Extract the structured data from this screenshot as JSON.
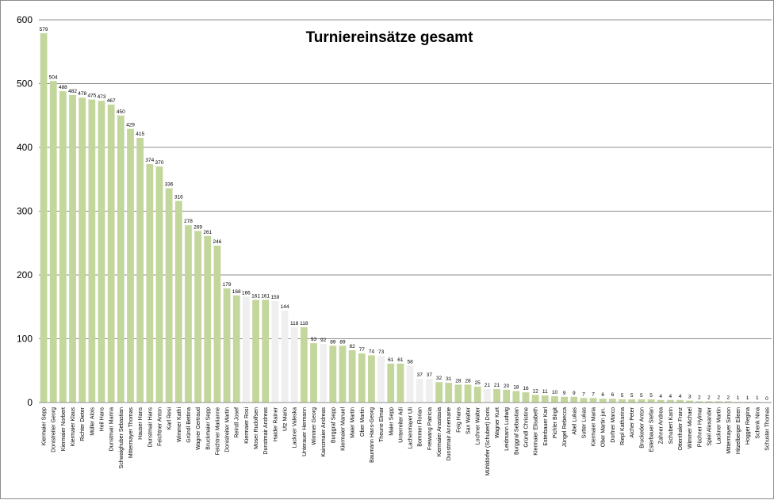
{
  "chart_data": {
    "type": "bar",
    "title": "Turniereinsätze gesamt",
    "xlabel": "",
    "ylabel": "",
    "ylim": [
      0,
      600
    ],
    "yticks": [
      0,
      100,
      200,
      300,
      400,
      500,
      600
    ],
    "grid": true,
    "legend": "none",
    "colors": {
      "green": "#c3d69b",
      "gray": "#efefef",
      "grid": "#8c8c8c"
    },
    "categories": [
      "Kiermaier Sepp",
      "Donislreiter Georg",
      "Kiermaier Norbert",
      "Kiermaier Klaus",
      "Richter Dieter",
      "Müller Alois",
      "Heil Hans",
      "Dunstmair Marina",
      "Schwaighuber Sebastian",
      "Mittermayer Thomas",
      "Hauser Hans",
      "Dunstmair Hans",
      "Feichtner Anton",
      "Karl Resi",
      "Wimmer Kathi",
      "Gründl Bettina",
      "Wagner Gertraud",
      "Bruckmaier Sepp",
      "Feichtner Marianne",
      "Donislreiter Martin",
      "Reindl Josef",
      "Kiermaier Rosi",
      "Moser Rudolfsen",
      "Dunstmair Andreas",
      "Haider Rainer",
      "Utz Mario",
      "Lackner Valeska",
      "Unterauer Hermann",
      "Wimmer Georg",
      "Kainzmaier Andreas",
      "Burggraf Sepp",
      "Kiermaier Manuel",
      "Maier Martin",
      "Ober Martin",
      "Baumann Hans-Georg",
      "Theune Elmar",
      "Maier Sepp",
      "Unterreiter Adi",
      "Lachenmayer Uli",
      "Bommer Florian",
      "Freiwang Patricia",
      "Kiermaier Anastasia",
      "Dunstmair Annemarie",
      "Feig Hans",
      "Sax Walter",
      "Lochner Walter",
      "Mühldörfer (Schubert) Doris",
      "Wagner Kurt",
      "Leidmann Ludwig",
      "Burggraf Sebastian",
      "Gründl Christine",
      "Kiermaier Elisabeth",
      "Esterbauer Karl",
      "Pichler Birgit",
      "Jüngel Rebecca",
      "Abel Lukas",
      "Sutter Lukas",
      "Kiermaier Maria",
      "Ober Martin jun.",
      "Dorfner Marco",
      "Riepl Katharina",
      "Aicher Peter",
      "Bruckeder Anton",
      "Esterbauer Stefan",
      "Zahner Andrea",
      "Schubert Karin",
      "Ottenthaler Franz",
      "Wimmer Michael",
      "Püchner Hylmar",
      "Spiel Alexander",
      "Lackner Martin",
      "Mittermayer Simon",
      "Hitzelberger Eileen",
      "Hogger Regina",
      "Schenk Nina",
      "Schuster Thomas"
    ],
    "values": [
      579,
      504,
      488,
      482,
      478,
      475,
      473,
      467,
      450,
      429,
      415,
      374,
      370,
      336,
      316,
      278,
      269,
      261,
      246,
      179,
      168,
      166,
      161,
      161,
      159,
      144,
      118,
      118,
      93,
      92,
      89,
      89,
      82,
      77,
      74,
      73,
      61,
      61,
      58,
      37,
      37,
      32,
      31,
      28,
      28,
      25,
      21,
      21,
      20,
      18,
      16,
      12,
      11,
      10,
      9,
      9,
      7,
      7,
      6,
      6,
      5,
      5,
      5,
      5,
      4,
      4,
      4,
      3,
      2,
      2,
      2,
      2,
      1,
      1,
      1,
      0
    ],
    "bar_colors": [
      "green",
      "green",
      "green",
      "green",
      "green",
      "green",
      "green",
      "green",
      "green",
      "green",
      "green",
      "green",
      "green",
      "green",
      "green",
      "green",
      "green",
      "green",
      "green",
      "green",
      "green",
      "gray",
      "green",
      "green",
      "gray",
      "gray",
      "gray",
      "green",
      "green",
      "gray",
      "green",
      "green",
      "green",
      "green",
      "green",
      "gray",
      "green",
      "green",
      "gray",
      "gray",
      "gray",
      "green",
      "green",
      "green",
      "green",
      "green",
      "gray",
      "green",
      "green",
      "green",
      "green",
      "green",
      "green",
      "green",
      "green",
      "green",
      "green",
      "green",
      "green",
      "green",
      "green",
      "green",
      "green",
      "green",
      "green",
      "green",
      "green",
      "green",
      "green",
      "green",
      "green",
      "green",
      "green",
      "green",
      "green",
      "green"
    ]
  }
}
